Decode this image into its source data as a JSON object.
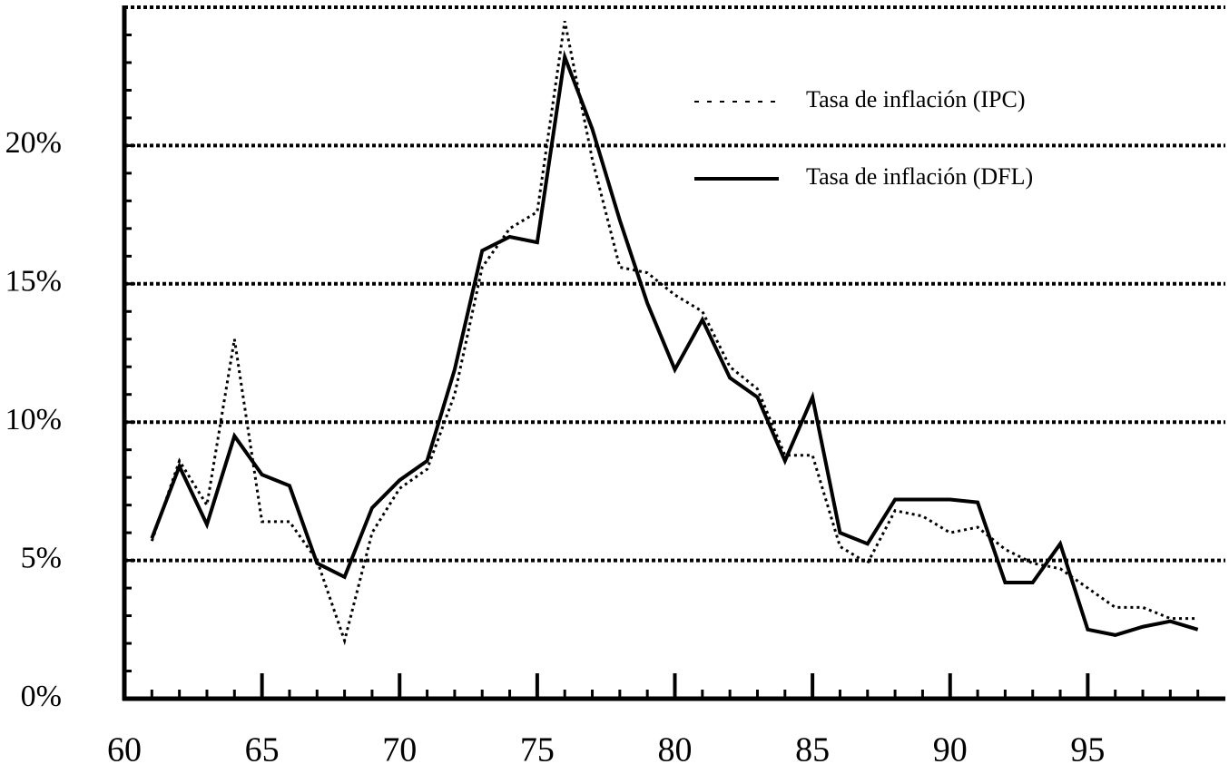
{
  "chart_data": {
    "type": "line",
    "x": [
      61,
      62,
      63,
      64,
      65,
      66,
      67,
      68,
      69,
      70,
      71,
      72,
      73,
      74,
      75,
      76,
      77,
      78,
      79,
      80,
      81,
      82,
      83,
      84,
      85,
      86,
      87,
      88,
      89,
      90,
      91,
      92,
      93,
      94,
      95,
      96,
      97,
      98,
      99
    ],
    "series": [
      {
        "name": "Tasa de inflación (IPC)",
        "color": "#000000",
        "style": "dotted",
        "values": [
          5.7,
          8.6,
          7.0,
          13.0,
          6.4,
          6.4,
          5.0,
          2.1,
          6.0,
          7.6,
          8.3,
          11.0,
          15.6,
          17.0,
          17.6,
          24.5,
          19.5,
          15.6,
          15.4,
          14.6,
          14.0,
          12.0,
          11.2,
          8.8,
          8.8,
          5.5,
          4.9,
          6.8,
          6.6,
          6.0,
          6.2,
          5.4,
          4.9,
          4.7,
          4.0,
          3.3,
          3.3,
          2.9,
          2.9
        ]
      },
      {
        "name": "Tasa de inflación (DFL)",
        "color": "#000000",
        "style": "solid",
        "values": [
          5.8,
          8.4,
          6.3,
          9.5,
          8.1,
          7.7,
          4.9,
          4.4,
          6.9,
          7.9,
          8.6,
          11.9,
          16.2,
          16.7,
          16.5,
          23.2,
          20.6,
          17.3,
          14.3,
          11.9,
          13.7,
          11.6,
          10.9,
          8.6,
          10.9,
          6.0,
          5.6,
          7.2,
          7.2,
          7.2,
          7.1,
          4.2,
          4.2,
          5.6,
          2.5,
          2.3,
          2.6,
          2.8,
          2.5
        ]
      }
    ],
    "xlim": [
      60,
      100
    ],
    "xticks": [
      60,
      65,
      70,
      75,
      80,
      85,
      90,
      95
    ],
    "ylim": [
      0,
      25
    ],
    "yticks": [
      {
        "value": 0,
        "label": "0%"
      },
      {
        "value": 5,
        "label": "5%"
      },
      {
        "value": 10,
        "label": "10%"
      },
      {
        "value": 15,
        "label": "15%"
      },
      {
        "value": 20,
        "label": "20%"
      }
    ],
    "grid": true,
    "legend": "upper right"
  }
}
